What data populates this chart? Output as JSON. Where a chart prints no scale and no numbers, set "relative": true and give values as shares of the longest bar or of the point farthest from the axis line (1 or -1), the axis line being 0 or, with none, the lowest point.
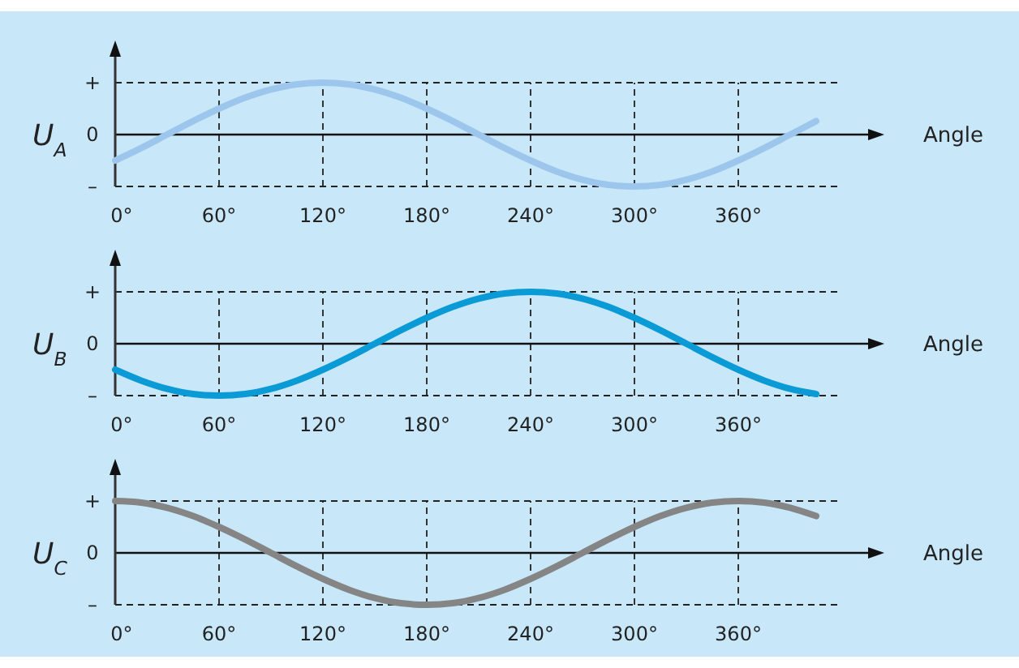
{
  "chart_data": [
    {
      "type": "line",
      "ylabel": "U$_{A}$",
      "xlabel": "Angle",
      "x": [
        0,
        15,
        30,
        45,
        60,
        75,
        90,
        105,
        120,
        135,
        150,
        165,
        180,
        195,
        210,
        225,
        240,
        255,
        270,
        285,
        300,
        315,
        330,
        345,
        360,
        375,
        390,
        405
      ],
      "xlim": [
        0,
        420
      ],
      "xticks": [
        {
          "value": 0,
          "label": "0°"
        },
        {
          "value": 60,
          "label": "60°"
        },
        {
          "value": 120,
          "label": "120°"
        },
        {
          "value": 180,
          "label": "180°"
        },
        {
          "value": 240,
          "label": "240°"
        },
        {
          "value": 300,
          "label": "300°"
        },
        {
          "value": 360,
          "label": "360°"
        }
      ],
      "relative": true,
      "ref_lines": [
        {
          "axis": "y",
          "value": 1,
          "label": "+",
          "line_style": "dashed"
        },
        {
          "axis": "y",
          "value": 0,
          "label": "0",
          "line_style": "solid"
        },
        {
          "axis": "y",
          "value": -1,
          "label": "–",
          "line_style": "dashed"
        }
      ],
      "grid": "x",
      "series": [
        {
          "color": "#9dc6ec",
          "values": [
            -0.5,
            -0.26,
            0,
            0.26,
            0.5,
            0.71,
            0.87,
            0.97,
            1,
            0.97,
            0.87,
            0.71,
            0.5,
            0.26,
            0,
            -0.26,
            -0.5,
            -0.71,
            -0.87,
            -0.97,
            -1,
            -0.97,
            -0.87,
            -0.71,
            -0.5,
            -0.26,
            0,
            0.26
          ]
        }
      ]
    },
    {
      "type": "line",
      "ylabel": "U$_{B}$",
      "xlabel": "Angle",
      "x": [
        0,
        15,
        30,
        45,
        60,
        75,
        90,
        105,
        120,
        135,
        150,
        165,
        180,
        195,
        210,
        225,
        240,
        255,
        270,
        285,
        300,
        315,
        330,
        345,
        360,
        375,
        390,
        405
      ],
      "xlim": [
        0,
        420
      ],
      "xticks": [
        {
          "value": 0,
          "label": "0°"
        },
        {
          "value": 60,
          "label": "60°"
        },
        {
          "value": 120,
          "label": "120°"
        },
        {
          "value": 180,
          "label": "180°"
        },
        {
          "value": 240,
          "label": "240°"
        },
        {
          "value": 300,
          "label": "300°"
        },
        {
          "value": 360,
          "label": "360°"
        }
      ],
      "relative": true,
      "ref_lines": [
        {
          "axis": "y",
          "value": 1,
          "label": "+",
          "line_style": "dashed"
        },
        {
          "axis": "y",
          "value": 0,
          "label": "0",
          "line_style": "solid"
        },
        {
          "axis": "y",
          "value": -1,
          "label": "–",
          "line_style": "dashed"
        }
      ],
      "grid": "x",
      "series": [
        {
          "color": "#0a9bd6",
          "values": [
            -0.5,
            -0.71,
            -0.87,
            -0.97,
            -1,
            -0.97,
            -0.87,
            -0.71,
            -0.5,
            -0.26,
            0,
            0.26,
            0.5,
            0.71,
            0.87,
            0.97,
            1,
            0.97,
            0.87,
            0.71,
            0.5,
            0.26,
            0,
            -0.26,
            -0.5,
            -0.71,
            -0.87,
            -0.97
          ]
        }
      ]
    },
    {
      "type": "line",
      "ylabel": "U$_{C}$",
      "xlabel": "Angle",
      "x": [
        0,
        15,
        30,
        45,
        60,
        75,
        90,
        105,
        120,
        135,
        150,
        165,
        180,
        195,
        210,
        225,
        240,
        255,
        270,
        285,
        300,
        315,
        330,
        345,
        360,
        375,
        390,
        405
      ],
      "xlim": [
        0,
        420
      ],
      "xticks": [
        {
          "value": 0,
          "label": "0°"
        },
        {
          "value": 60,
          "label": "60°"
        },
        {
          "value": 120,
          "label": "120°"
        },
        {
          "value": 180,
          "label": "180°"
        },
        {
          "value": 240,
          "label": "240°"
        },
        {
          "value": 300,
          "label": "300°"
        },
        {
          "value": 360,
          "label": "360°"
        }
      ],
      "relative": true,
      "ref_lines": [
        {
          "axis": "y",
          "value": 1,
          "label": "+",
          "line_style": "dashed"
        },
        {
          "axis": "y",
          "value": 0,
          "label": "0",
          "line_style": "solid"
        },
        {
          "axis": "y",
          "value": -1,
          "label": "–",
          "line_style": "dashed"
        }
      ],
      "grid": "x",
      "series": [
        {
          "color": "#858585",
          "values": [
            1,
            0.97,
            0.87,
            0.71,
            0.5,
            0.26,
            0,
            -0.26,
            -0.5,
            -0.71,
            -0.87,
            -0.97,
            -1,
            -0.97,
            -0.87,
            -0.71,
            -0.5,
            -0.26,
            0,
            0.26,
            0.5,
            0.71,
            0.87,
            0.97,
            1,
            0.97,
            0.87,
            0.71
          ]
        }
      ]
    }
  ]
}
